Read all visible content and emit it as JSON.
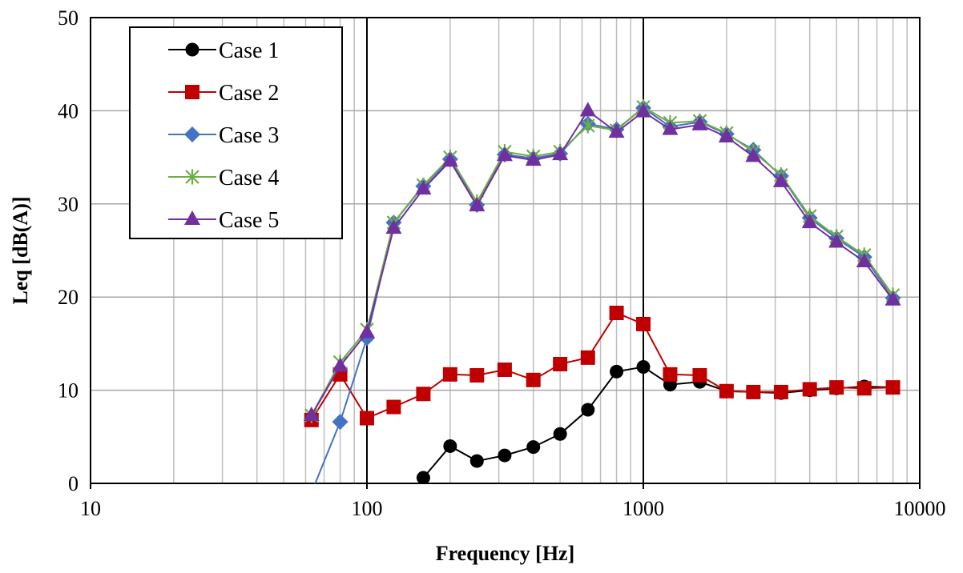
{
  "chart_data": {
    "type": "line",
    "title": "",
    "xlabel": "Frequency [Hz]",
    "ylabel": "Leq [dB(A)]",
    "xscale": "log",
    "xlim": [
      10,
      10000
    ],
    "ylim": [
      0,
      50
    ],
    "x_ticks": [
      "10",
      "100",
      "1000",
      "10000"
    ],
    "y_ticks": [
      "0",
      "10",
      "20",
      "30",
      "40",
      "50"
    ],
    "grid": true,
    "legend_position": "top-left",
    "x": [
      63,
      80,
      100,
      125,
      160,
      200,
      250,
      315,
      400,
      500,
      630,
      800,
      1000,
      1250,
      1600,
      2000,
      2500,
      3150,
      4000,
      5000,
      6300,
      8000
    ],
    "series": [
      {
        "name": "Case 1",
        "color": "#000000",
        "marker": "circle",
        "values": [
          null,
          null,
          null,
          null,
          0.6,
          4.0,
          2.4,
          3.0,
          3.9,
          5.3,
          7.9,
          12.0,
          12.5,
          10.6,
          10.9,
          9.9,
          9.8,
          9.7,
          10.0,
          10.2,
          10.4,
          10.3
        ]
      },
      {
        "name": "Case 2",
        "color": "#c00000",
        "marker": "square",
        "values": [
          6.8,
          11.7,
          7.0,
          8.2,
          9.6,
          11.7,
          11.6,
          12.2,
          11.1,
          12.8,
          13.5,
          18.3,
          17.1,
          11.7,
          11.6,
          9.9,
          9.8,
          9.8,
          10.1,
          10.3,
          10.2,
          10.3
        ]
      },
      {
        "name": "Case 3",
        "color": "#4472c4",
        "marker": "diamond",
        "values": [
          -1.0,
          6.6,
          15.6,
          28.0,
          31.9,
          34.8,
          29.9,
          35.3,
          34.9,
          35.4,
          38.6,
          38.0,
          40.3,
          38.3,
          38.8,
          37.5,
          35.8,
          33.0,
          28.5,
          26.3,
          24.3,
          19.9
        ]
      },
      {
        "name": "Case 4",
        "color": "#70ad47",
        "marker": "asterisk",
        "values": [
          7.3,
          13.0,
          16.5,
          28.0,
          32.0,
          35.0,
          30.2,
          35.6,
          35.1,
          35.6,
          38.4,
          37.9,
          40.4,
          38.7,
          38.9,
          37.6,
          35.6,
          33.1,
          28.7,
          26.5,
          24.5,
          20.2
        ]
      },
      {
        "name": "Case 5",
        "color": "#7030a0",
        "marker": "triangle",
        "values": [
          7.3,
          12.6,
          16.2,
          27.4,
          31.6,
          34.6,
          29.8,
          35.2,
          34.7,
          35.3,
          40.0,
          37.7,
          39.9,
          38.0,
          38.5,
          37.2,
          35.1,
          32.4,
          28.0,
          25.9,
          23.8,
          19.7
        ]
      }
    ]
  }
}
